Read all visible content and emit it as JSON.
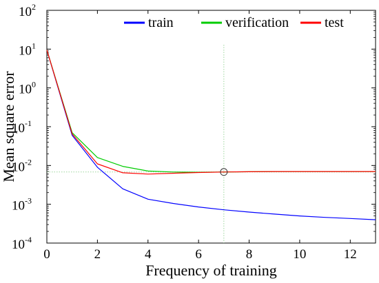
{
  "chart_data": {
    "type": "line",
    "xlabel": "Frequency of training",
    "ylabel": "Mean square error",
    "x": [
      0,
      1,
      2,
      3,
      4,
      5,
      6,
      7,
      8,
      9,
      10,
      11,
      12,
      13
    ],
    "xlim": [
      0,
      13
    ],
    "ylim": [
      0.0001,
      100
    ],
    "yscale": "log",
    "x_ticks": [
      "0",
      "2",
      "4",
      "6",
      "8",
      "10",
      "12"
    ],
    "y_ticks": [
      {
        "base": "10",
        "exp": "2",
        "value": 100
      },
      {
        "base": "10",
        "exp": "1",
        "value": 10
      },
      {
        "base": "10",
        "exp": "0",
        "value": 1
      },
      {
        "base": "10",
        "exp": "-1",
        "value": 0.1
      },
      {
        "base": "10",
        "exp": "-2",
        "value": 0.01
      },
      {
        "base": "10",
        "exp": "-3",
        "value": 0.001
      },
      {
        "base": "10",
        "exp": "-4",
        "value": 0.0001
      }
    ],
    "series": [
      {
        "name": "train",
        "color": "#0000ff",
        "values": [
          9.5,
          0.06,
          0.009,
          0.0025,
          0.00135,
          0.00105,
          0.00085,
          0.00072,
          0.00063,
          0.00056,
          0.0005,
          0.00046,
          0.00043,
          0.0004
        ]
      },
      {
        "name": "verification",
        "color": "#00cc00",
        "values": [
          9.5,
          0.07,
          0.016,
          0.0095,
          0.0072,
          0.0068,
          0.0067,
          0.0068,
          0.0069,
          0.007,
          0.007,
          0.007,
          0.007,
          0.007
        ]
      },
      {
        "name": "test",
        "color": "#ff0000",
        "values": [
          9.5,
          0.065,
          0.011,
          0.0065,
          0.006,
          0.0063,
          0.0066,
          0.0068,
          0.0069,
          0.007,
          0.007,
          0.007,
          0.007,
          0.007
        ]
      }
    ],
    "best_point": {
      "x": 7,
      "y": 0.0068
    },
    "legend_placement": "top-right",
    "grid": false
  }
}
